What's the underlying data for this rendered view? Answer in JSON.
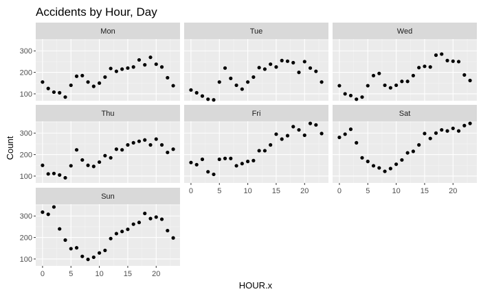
{
  "chart_data": {
    "type": "scatter",
    "title": "Accidents by Hour, Day",
    "xlabel": "HOUR.x",
    "ylabel": "Count",
    "xlim": [
      -1.2,
      24.2
    ],
    "ylim": [
      68,
      355
    ],
    "x_ticks": [
      0,
      5,
      10,
      15,
      20
    ],
    "y_ticks": [
      100,
      200,
      300
    ],
    "grid": true,
    "x": [
      0,
      1,
      2,
      3,
      4,
      5,
      6,
      7,
      8,
      9,
      10,
      11,
      12,
      13,
      14,
      15,
      16,
      17,
      18,
      19,
      20,
      21,
      22,
      23
    ],
    "panels": [
      {
        "name": "Mon",
        "values": [
          155,
          125,
          108,
          105,
          85,
          140,
          182,
          185,
          155,
          135,
          150,
          178,
          218,
          205,
          215,
          220,
          225,
          258,
          235,
          270,
          238,
          225,
          175,
          138
        ]
      },
      {
        "name": "Tue",
        "values": [
          118,
          105,
          90,
          75,
          72,
          155,
          220,
          172,
          140,
          122,
          155,
          178,
          222,
          215,
          238,
          225,
          255,
          252,
          245,
          200,
          250,
          220,
          205,
          155
        ]
      },
      {
        "name": "Wed",
        "values": [
          138,
          100,
          92,
          75,
          85,
          138,
          185,
          195,
          140,
          128,
          140,
          158,
          158,
          185,
          222,
          228,
          225,
          280,
          285,
          255,
          252,
          250,
          188,
          162
        ]
      },
      {
        "name": "Thu",
        "values": [
          150,
          110,
          112,
          105,
          92,
          148,
          222,
          175,
          150,
          145,
          165,
          195,
          185,
          225,
          222,
          245,
          255,
          262,
          268,
          245,
          272,
          245,
          210,
          225
        ]
      },
      {
        "name": "Fri",
        "values": [
          163,
          153,
          178,
          120,
          108,
          178,
          182,
          182,
          148,
          158,
          168,
          172,
          218,
          218,
          245,
          295,
          272,
          288,
          330,
          315,
          290,
          345,
          338,
          298
        ]
      },
      {
        "name": "Sat",
        "values": [
          280,
          295,
          318,
          255,
          185,
          168,
          148,
          138,
          122,
          135,
          155,
          175,
          208,
          215,
          245,
          298,
          275,
          300,
          315,
          310,
          322,
          310,
          335,
          345
        ]
      },
      {
        "name": "Sun",
        "values": [
          318,
          308,
          342,
          240,
          188,
          148,
          152,
          112,
          98,
          108,
          128,
          140,
          195,
          218,
          228,
          238,
          262,
          270,
          312,
          288,
          295,
          285,
          232,
          198
        ]
      }
    ]
  }
}
